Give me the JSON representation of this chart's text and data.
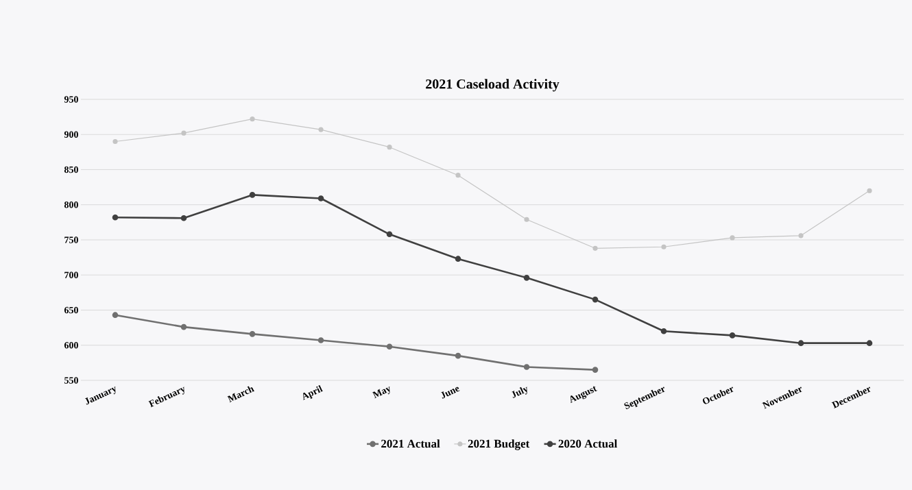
{
  "chart_data": {
    "type": "line",
    "title": "2021 Caseload Activity",
    "categories": [
      "January",
      "February",
      "March",
      "April",
      "May",
      "June",
      "July",
      "August",
      "September",
      "October",
      "November",
      "December"
    ],
    "series": [
      {
        "name": "2021 Actual",
        "color": "#707070",
        "values": [
          643,
          626,
          616,
          607,
          598,
          585,
          569,
          565,
          null,
          null,
          null,
          null
        ]
      },
      {
        "name": "2021 Budget",
        "color": "#c4c4c4",
        "values": [
          890,
          902,
          922,
          907,
          882,
          842,
          779,
          738,
          740,
          753,
          756,
          820
        ]
      },
      {
        "name": "2020 Actual",
        "color": "#404040",
        "values": [
          782,
          781,
          814,
          809,
          758,
          723,
          696,
          665,
          620,
          614,
          603,
          603
        ]
      }
    ],
    "ylim": [
      550,
      950
    ],
    "yticks": [
      550,
      600,
      650,
      700,
      750,
      800,
      850,
      900,
      950
    ],
    "grid": "y",
    "legend": "bottom",
    "marker": "circle",
    "line_style": "solid"
  }
}
